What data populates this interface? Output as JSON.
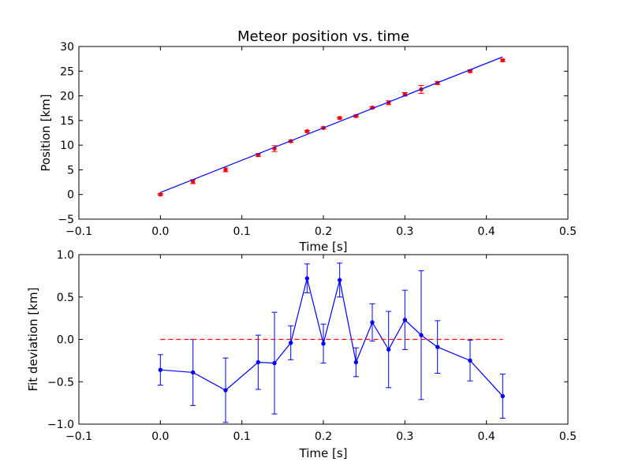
{
  "colors": {
    "data_red": "#ff0000",
    "fit_blue": "#0000ff",
    "residual_blue": "#0000ff",
    "zero_line_red": "#ff0000",
    "axes": "#000000"
  },
  "chart_data": [
    {
      "type": "scatter",
      "title": "Meteor position vs. time",
      "xlabel": "Time [s]",
      "ylabel": "Position [km]",
      "xlim": [
        -0.1,
        0.5
      ],
      "ylim": [
        -5,
        30
      ],
      "xticks": [
        -0.1,
        0.0,
        0.1,
        0.2,
        0.3,
        0.4,
        0.5
      ],
      "xtick_labels": [
        "−0.1",
        "0.0",
        "0.1",
        "0.2",
        "0.3",
        "0.4",
        "0.5"
      ],
      "yticks": [
        -5,
        0,
        5,
        10,
        15,
        20,
        25,
        30
      ],
      "ytick_labels": [
        "−5",
        "0",
        "5",
        "10",
        "15",
        "20",
        "25",
        "30"
      ],
      "grid": false,
      "series": [
        {
          "kind": "errorbar-points",
          "color": "#ff0000",
          "x": [
            0.0,
            0.04,
            0.08,
            0.12,
            0.14,
            0.16,
            0.18,
            0.2,
            0.22,
            0.24,
            0.26,
            0.28,
            0.3,
            0.32,
            0.34,
            0.38,
            0.42
          ],
          "y": [
            0.0,
            2.6,
            5.0,
            8.0,
            9.3,
            10.8,
            12.8,
            13.5,
            15.5,
            15.9,
            17.6,
            18.6,
            20.3,
            21.3,
            22.6,
            25.0,
            27.2
          ],
          "yerr": [
            0.2,
            0.4,
            0.4,
            0.3,
            0.6,
            0.2,
            0.2,
            0.2,
            0.2,
            0.2,
            0.2,
            0.4,
            0.35,
            0.8,
            0.3,
            0.25,
            0.25
          ]
        },
        {
          "kind": "line",
          "color": "#0000ff",
          "x": [
            0.0,
            0.42
          ],
          "y": [
            0.4,
            27.9
          ]
        }
      ]
    },
    {
      "type": "line",
      "title": "",
      "xlabel": "Time [s]",
      "ylabel": "Fit deviation [km]",
      "xlim": [
        -0.1,
        0.5
      ],
      "ylim": [
        -1.0,
        1.0
      ],
      "xticks": [
        -0.1,
        0.0,
        0.1,
        0.2,
        0.3,
        0.4,
        0.5
      ],
      "xtick_labels": [
        "−0.1",
        "0.0",
        "0.1",
        "0.2",
        "0.3",
        "0.4",
        "0.5"
      ],
      "yticks": [
        -1.0,
        -0.5,
        0.0,
        0.5,
        1.0
      ],
      "ytick_labels": [
        "−1.0",
        "−0.5",
        "0.0",
        "0.5",
        "1.0"
      ],
      "grid": false,
      "series": [
        {
          "kind": "errorbar-line",
          "color": "#0000ff",
          "x": [
            0.0,
            0.04,
            0.08,
            0.12,
            0.14,
            0.16,
            0.18,
            0.2,
            0.22,
            0.24,
            0.26,
            0.28,
            0.3,
            0.32,
            0.34,
            0.38,
            0.42
          ],
          "y": [
            -0.36,
            -0.39,
            -0.6,
            -0.27,
            -0.28,
            -0.04,
            0.72,
            -0.05,
            0.7,
            -0.27,
            0.2,
            -0.12,
            0.23,
            0.05,
            -0.09,
            -0.25,
            -0.67
          ],
          "yerr": [
            0.18,
            0.39,
            0.38,
            0.32,
            0.6,
            0.2,
            0.17,
            0.23,
            0.2,
            0.17,
            0.22,
            0.45,
            0.35,
            0.76,
            0.31,
            0.24,
            0.26
          ]
        },
        {
          "kind": "dashed-line",
          "color": "#ff0000",
          "x": [
            0.0,
            0.42
          ],
          "y": [
            0.0,
            0.0
          ]
        }
      ]
    }
  ]
}
